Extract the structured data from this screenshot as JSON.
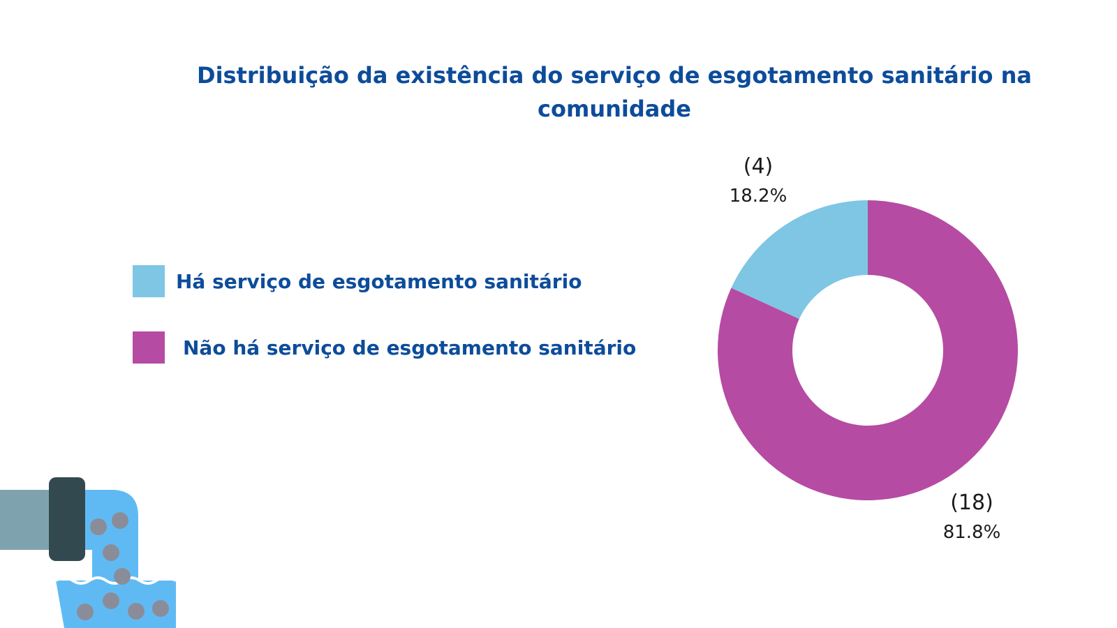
{
  "chart_data": {
    "type": "donut",
    "title": "Distribuição da existência do serviço de esgotamento sanitário na comunidade",
    "slices": [
      {
        "label": "Há serviço de esgotamento sanitário",
        "count_label": "(4)",
        "percent_label": "18.2%",
        "value": 4,
        "percent": 18.2,
        "color": "#7ec6e4"
      },
      {
        "label": "Não há serviço de esgotamento sanitário",
        "count_label": "(18)",
        "percent_label": "81.8%",
        "value": 18,
        "percent": 81.8,
        "color": "#b64ba3"
      }
    ],
    "legend_position": "left"
  },
  "colors": {
    "title": "#0d4c9a",
    "pipe_body": "#7fa3ae",
    "pipe_collar": "#324a4f",
    "water": "#5fbaf4",
    "debris": "#8a8d99"
  },
  "icons": {
    "decoration": "sewer-pipe-icon"
  }
}
